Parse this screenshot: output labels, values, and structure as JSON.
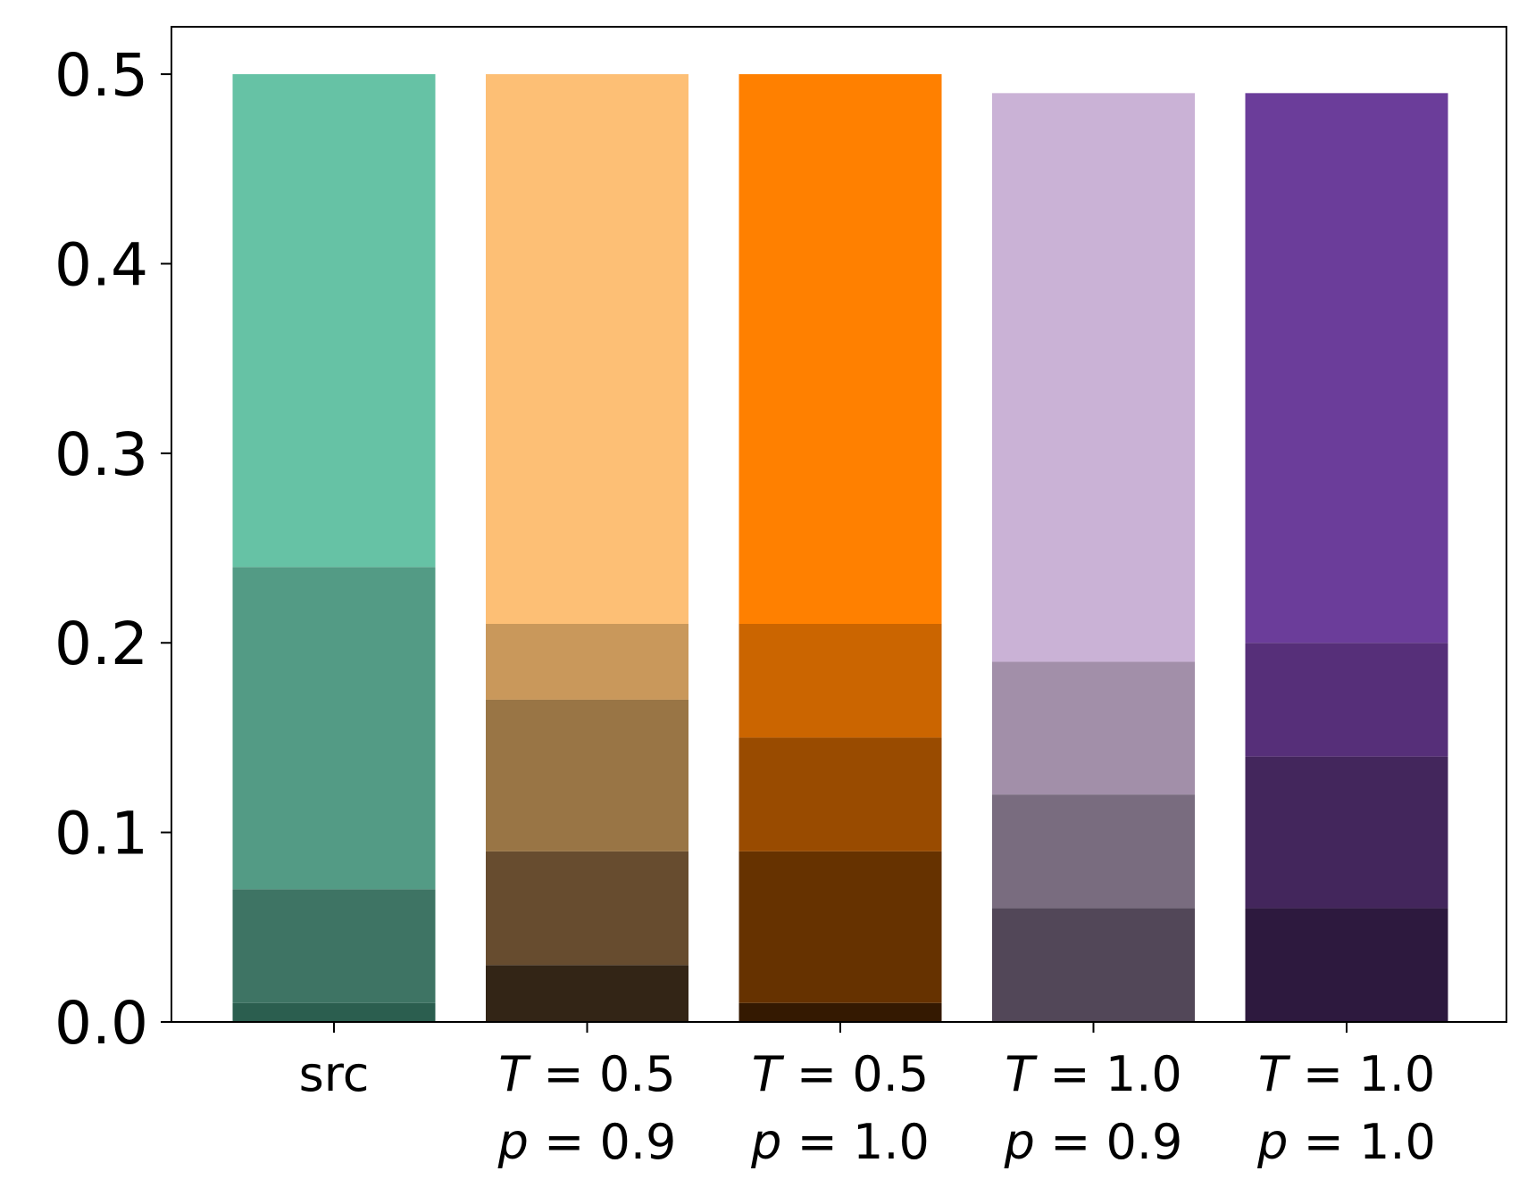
{
  "chart_data": {
    "type": "bar",
    "stacked": true,
    "categories": [
      {
        "line1_var": "",
        "line1_rest": "src",
        "line2_var": "",
        "line2_rest": ""
      },
      {
        "line1_var": "T",
        "line1_rest": " = 0.5",
        "line2_var": "p",
        "line2_rest": " = 0.9"
      },
      {
        "line1_var": "T",
        "line1_rest": " = 0.5",
        "line2_var": "p",
        "line2_rest": " = 1.0"
      },
      {
        "line1_var": "T",
        "line1_rest": " = 1.0",
        "line2_var": "p",
        "line2_rest": " = 0.9"
      },
      {
        "line1_var": "T",
        "line1_rest": " = 1.0",
        "line2_var": "p",
        "line2_rest": " = 1.0"
      }
    ],
    "bars": [
      {
        "segments": [
          {
            "from": 0.0,
            "to": 0.01,
            "color": "#2b5e4f"
          },
          {
            "from": 0.01,
            "to": 0.07,
            "color": "#3e7464"
          },
          {
            "from": 0.07,
            "to": 0.24,
            "color": "#539b85"
          },
          {
            "from": 0.24,
            "to": 0.5,
            "color": "#66c2a5"
          }
        ]
      },
      {
        "segments": [
          {
            "from": 0.0,
            "to": 0.03,
            "color": "#332516"
          },
          {
            "from": 0.03,
            "to": 0.09,
            "color": "#674c2f"
          },
          {
            "from": 0.09,
            "to": 0.17,
            "color": "#997545"
          },
          {
            "from": 0.17,
            "to": 0.21,
            "color": "#c9985b"
          },
          {
            "from": 0.21,
            "to": 0.5,
            "color": "#fdbf75"
          }
        ]
      },
      {
        "segments": [
          {
            "from": 0.0,
            "to": 0.01,
            "color": "#341901"
          },
          {
            "from": 0.01,
            "to": 0.09,
            "color": "#663200"
          },
          {
            "from": 0.09,
            "to": 0.15,
            "color": "#994b00"
          },
          {
            "from": 0.15,
            "to": 0.21,
            "color": "#cb6500"
          },
          {
            "from": 0.21,
            "to": 0.5,
            "color": "#ff8000"
          }
        ]
      },
      {
        "segments": [
          {
            "from": 0.0,
            "to": 0.06,
            "color": "#524758"
          },
          {
            "from": 0.06,
            "to": 0.12,
            "color": "#796c7f"
          },
          {
            "from": 0.12,
            "to": 0.19,
            "color": "#a28fa9"
          },
          {
            "from": 0.19,
            "to": 0.49,
            "color": "#cab2d6"
          }
        ]
      },
      {
        "segments": [
          {
            "from": 0.0,
            "to": 0.06,
            "color": "#2d193e"
          },
          {
            "from": 0.06,
            "to": 0.14,
            "color": "#43265c"
          },
          {
            "from": 0.14,
            "to": 0.2,
            "color": "#562f79"
          },
          {
            "from": 0.2,
            "to": 0.49,
            "color": "#6b3d9a"
          }
        ]
      }
    ],
    "ylim": [
      0.0,
      0.525
    ],
    "yticks": [
      "0.0",
      "0.1",
      "0.2",
      "0.3",
      "0.4",
      "0.5"
    ],
    "xlabel": "",
    "ylabel": "",
    "title": "",
    "grid": false
  }
}
